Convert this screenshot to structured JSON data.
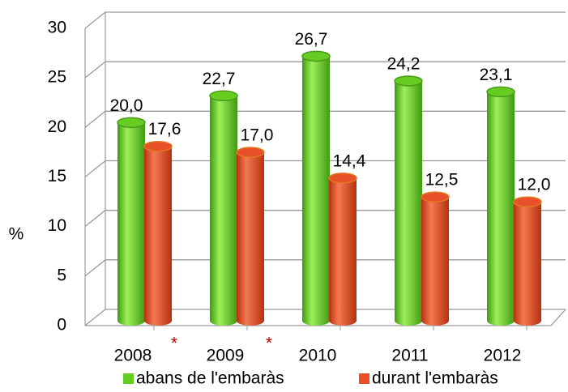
{
  "chart_data": {
    "type": "bar3d",
    "ylabel": "%",
    "categories": [
      "2008",
      "2009",
      "2010",
      "2011",
      "2012"
    ],
    "series": [
      {
        "name": "abans de l'embaràs",
        "color": "#66cc22",
        "values": [
          20.0,
          22.7,
          26.7,
          24.2,
          23.1
        ],
        "value_labels": [
          "20,0",
          "22,7",
          "26,7",
          "24,2",
          "23,1"
        ]
      },
      {
        "name": "durant l'embaràs",
        "color": "#e8502a",
        "values": [
          17.6,
          17.0,
          14.4,
          12.5,
          12.0
        ],
        "value_labels": [
          "17,6",
          "17,0",
          "14,4",
          "12,5",
          "12,0"
        ]
      }
    ],
    "annotations": [
      "*",
      "*"
    ],
    "ylim": [
      0,
      30
    ],
    "yticks": [
      0,
      5,
      10,
      15,
      20,
      25,
      30
    ],
    "grid": true,
    "legend": "bottom"
  }
}
